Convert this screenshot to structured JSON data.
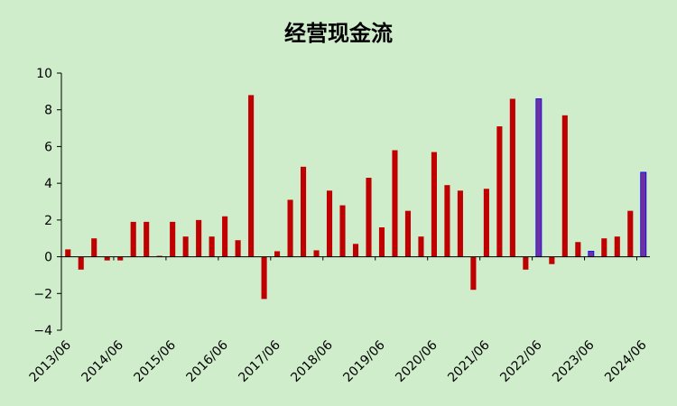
{
  "chart_data": {
    "type": "bar",
    "title": "经营现金流",
    "xlabel": "",
    "ylabel": "",
    "ylim": [
      -4,
      10
    ],
    "yticks": [
      "−4",
      "−2",
      "0",
      "2",
      "4",
      "6",
      "8",
      "10"
    ],
    "grid": false,
    "legend": "none",
    "x_tick_labels": [
      "2013/06",
      "2014/06",
      "2015/06",
      "2016/06",
      "2017/06",
      "2018/06",
      "2019/06",
      "2020/06",
      "2021/06",
      "2022/06",
      "2023/06",
      "2024/06"
    ],
    "periods": [
      "2013/06",
      "2013/09",
      "2013/12",
      "2014/03",
      "2014/06",
      "2014/09",
      "2014/12",
      "2015/03",
      "2015/06",
      "2015/09",
      "2015/12",
      "2016/03",
      "2016/06",
      "2016/09",
      "2016/12",
      "2017/03",
      "2017/06",
      "2017/09",
      "2017/12",
      "2018/03",
      "2018/06",
      "2018/09",
      "2018/12",
      "2019/03",
      "2019/06",
      "2019/09",
      "2019/12",
      "2020/03",
      "2020/06",
      "2020/09",
      "2020/12",
      "2021/03",
      "2021/06",
      "2021/09",
      "2021/12",
      "2022/03",
      "2022/06",
      "2022/09",
      "2022/12",
      "2023/03",
      "2023/06",
      "2023/09",
      "2023/12",
      "2024/03",
      "2024/06"
    ],
    "values": [
      0.4,
      -0.7,
      1.0,
      -0.2,
      -0.2,
      1.9,
      1.9,
      0.05,
      1.9,
      1.1,
      2.0,
      1.1,
      2.2,
      0.9,
      8.8,
      -2.3,
      0.3,
      3.1,
      4.9,
      0.35,
      3.6,
      2.8,
      0.7,
      4.3,
      1.6,
      5.8,
      2.5,
      1.1,
      5.7,
      3.9,
      3.6,
      -1.8,
      3.7,
      7.1,
      8.6,
      -0.7,
      8.6,
      -0.4,
      7.7,
      0.8,
      0.3,
      1.0,
      1.1,
      2.5,
      4.6
    ],
    "highlight_indices": [
      36,
      40,
      44
    ],
    "colors": {
      "bar": "#c00000",
      "highlight": "#7030a0",
      "highlight_edge": "#0000ff",
      "axis": "#000000",
      "background": "#cfeccb"
    }
  }
}
